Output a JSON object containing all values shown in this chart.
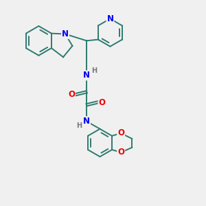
{
  "bg_color": "#f0f0f0",
  "bond_color": "#2d7a6e",
  "nitrogen_color": "#0000ee",
  "oxygen_color": "#ee0000",
  "hydrogen_color": "#777777",
  "lw": 1.4,
  "dbo": 0.13,
  "fs": 8.5,
  "fig_w": 3.0,
  "fig_h": 3.0,
  "dpi": 100,
  "xlim": [
    0,
    10
  ],
  "ylim": [
    0,
    10
  ]
}
